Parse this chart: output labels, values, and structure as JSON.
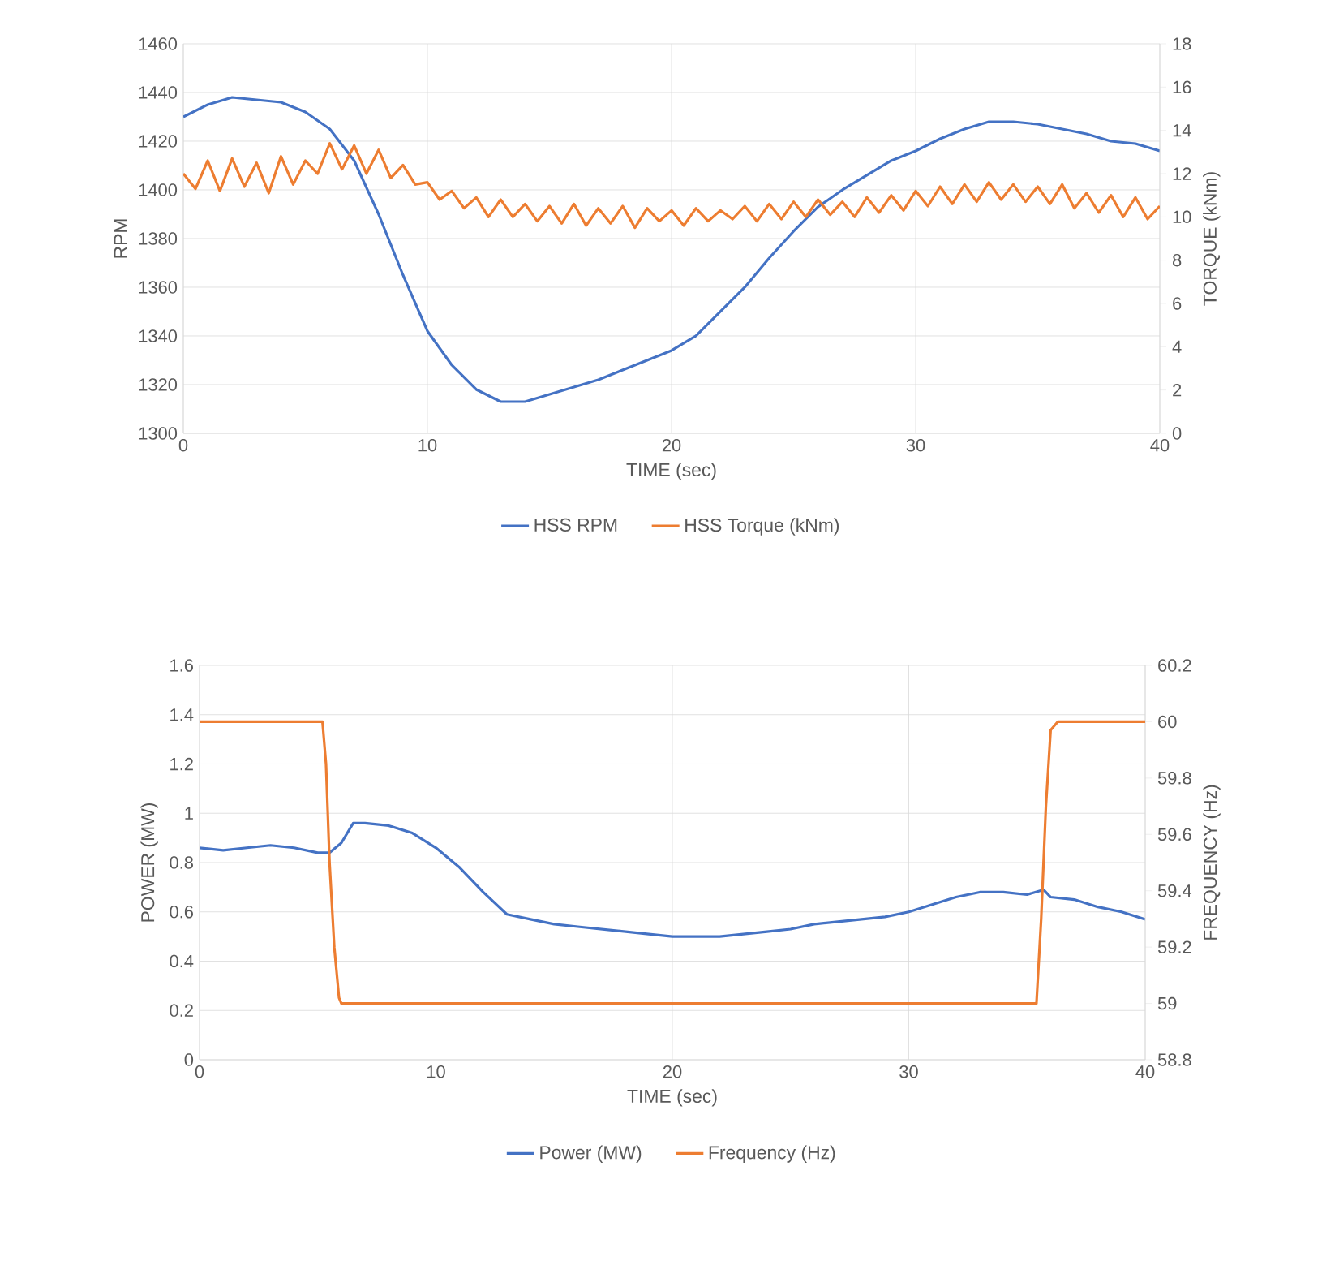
{
  "chart_data": [
    {
      "type": "line",
      "xlabel": "TIME (sec)",
      "ylabel": "RPM",
      "y2label": "TORQUE (kNm)",
      "grid": true,
      "legend": "bottom",
      "xlim": [
        0,
        40
      ],
      "xticks": [
        0,
        10,
        20,
        30,
        40
      ],
      "ylim": [
        1300,
        1460
      ],
      "yticks": [
        1300,
        1320,
        1340,
        1360,
        1380,
        1400,
        1420,
        1440,
        1460
      ],
      "y2lim": [
        0,
        18
      ],
      "y2ticks": [
        0,
        2,
        4,
        6,
        8,
        10,
        12,
        14,
        16,
        18
      ],
      "series": [
        {
          "name": "HSS RPM",
          "color": "#4472c4",
          "x": [
            0,
            1,
            2,
            3,
            4,
            5,
            6,
            7,
            8,
            9,
            10,
            11,
            12,
            13,
            14,
            15,
            16,
            17,
            18,
            19,
            20,
            21,
            22,
            23,
            24,
            25,
            26,
            27,
            28,
            29,
            30,
            31,
            32,
            33,
            34,
            35,
            36,
            37,
            38,
            39,
            40
          ],
          "values": [
            1430,
            1435,
            1438,
            1437,
            1436,
            1432,
            1425,
            1412,
            1390,
            1365,
            1342,
            1328,
            1318,
            1313,
            1313,
            1316,
            1319,
            1322,
            1326,
            1330,
            1334,
            1340,
            1350,
            1360,
            1372,
            1383,
            1393,
            1400,
            1406,
            1412,
            1416,
            1421,
            1425,
            1428,
            1428,
            1427,
            1425,
            1423,
            1420,
            1419,
            1416
          ]
        },
        {
          "name": "HSS Torque (kNm)",
          "color": "#ed7d31",
          "axis": "y2",
          "x": [
            0,
            0.5,
            1,
            1.5,
            2,
            2.5,
            3,
            3.5,
            4,
            4.5,
            5,
            5.5,
            6,
            6.5,
            7,
            7.5,
            8,
            8.5,
            9,
            9.5,
            10,
            10.5,
            11,
            11.5,
            12,
            12.5,
            13,
            13.5,
            14,
            14.5,
            15,
            15.5,
            16,
            16.5,
            17,
            17.5,
            18,
            18.5,
            19,
            19.5,
            20,
            20.5,
            21,
            21.5,
            22,
            22.5,
            23,
            23.5,
            24,
            24.5,
            25,
            25.5,
            26,
            26.5,
            27,
            27.5,
            28,
            28.5,
            29,
            29.5,
            30,
            30.5,
            31,
            31.5,
            32,
            32.5,
            33,
            33.5,
            34,
            34.5,
            35,
            35.5,
            36,
            36.5,
            37,
            37.5,
            38,
            38.5,
            39,
            39.5,
            40
          ],
          "values": [
            12.0,
            11.3,
            12.6,
            11.2,
            12.7,
            11.4,
            12.5,
            11.1,
            12.8,
            11.5,
            12.6,
            12.0,
            13.4,
            12.2,
            13.3,
            12.0,
            13.1,
            11.8,
            12.4,
            11.5,
            11.6,
            10.8,
            11.2,
            10.4,
            10.9,
            10.0,
            10.8,
            10.0,
            10.6,
            9.8,
            10.5,
            9.7,
            10.6,
            9.6,
            10.4,
            9.7,
            10.5,
            9.5,
            10.4,
            9.8,
            10.3,
            9.6,
            10.4,
            9.8,
            10.3,
            9.9,
            10.5,
            9.8,
            10.6,
            9.9,
            10.7,
            10.0,
            10.8,
            10.1,
            10.7,
            10.0,
            10.9,
            10.2,
            11.0,
            10.3,
            11.2,
            10.5,
            11.4,
            10.6,
            11.5,
            10.7,
            11.6,
            10.8,
            11.5,
            10.7,
            11.4,
            10.6,
            11.5,
            10.4,
            11.1,
            10.2,
            11.0,
            10.0,
            10.9,
            9.9,
            10.5
          ]
        }
      ]
    },
    {
      "type": "line",
      "xlabel": "TIME (sec)",
      "ylabel": "POWER (MW)",
      "y2label": "FREQUENCY (Hz)",
      "grid": true,
      "legend": "bottom",
      "xlim": [
        0,
        40
      ],
      "xticks": [
        0,
        10,
        20,
        30,
        40
      ],
      "ylim": [
        0,
        1.6
      ],
      "yticks": [
        0,
        0.2,
        0.4,
        0.6,
        0.8,
        1,
        1.2,
        1.4,
        1.6
      ],
      "y2lim": [
        58.8,
        60.2
      ],
      "y2ticks": [
        58.8,
        59,
        59.2,
        59.4,
        59.6,
        59.8,
        60,
        60.2
      ],
      "series": [
        {
          "name": "Power (MW)",
          "color": "#4472c4",
          "x": [
            0,
            1,
            2,
            3,
            4,
            5,
            5.5,
            6,
            6.5,
            7,
            8,
            9,
            10,
            11,
            12,
            13,
            14,
            15,
            16,
            17,
            18,
            19,
            20,
            21,
            22,
            23,
            24,
            25,
            26,
            27,
            28,
            29,
            30,
            31,
            32,
            33,
            34,
            35,
            35.7,
            36,
            37,
            38,
            39,
            40
          ],
          "values": [
            0.86,
            0.85,
            0.86,
            0.87,
            0.86,
            0.84,
            0.84,
            0.88,
            0.96,
            0.96,
            0.95,
            0.92,
            0.86,
            0.78,
            0.68,
            0.59,
            0.57,
            0.55,
            0.54,
            0.53,
            0.52,
            0.51,
            0.5,
            0.5,
            0.5,
            0.51,
            0.52,
            0.53,
            0.55,
            0.56,
            0.57,
            0.58,
            0.6,
            0.63,
            0.66,
            0.68,
            0.68,
            0.67,
            0.69,
            0.66,
            0.65,
            0.62,
            0.6,
            0.57
          ]
        },
        {
          "name": "Frequency (Hz)",
          "color": "#ed7d31",
          "axis": "y2",
          "x": [
            0,
            2,
            4,
            5.2,
            5.35,
            5.5,
            5.7,
            5.9,
            6,
            10,
            15,
            20,
            25,
            30,
            35.4,
            35.6,
            35.8,
            36,
            36.3,
            38,
            40
          ],
          "values": [
            60,
            60,
            60,
            60,
            59.85,
            59.5,
            59.2,
            59.02,
            59,
            59,
            59,
            59,
            59,
            59,
            59,
            59.3,
            59.7,
            59.97,
            60,
            60,
            60
          ]
        }
      ]
    }
  ]
}
